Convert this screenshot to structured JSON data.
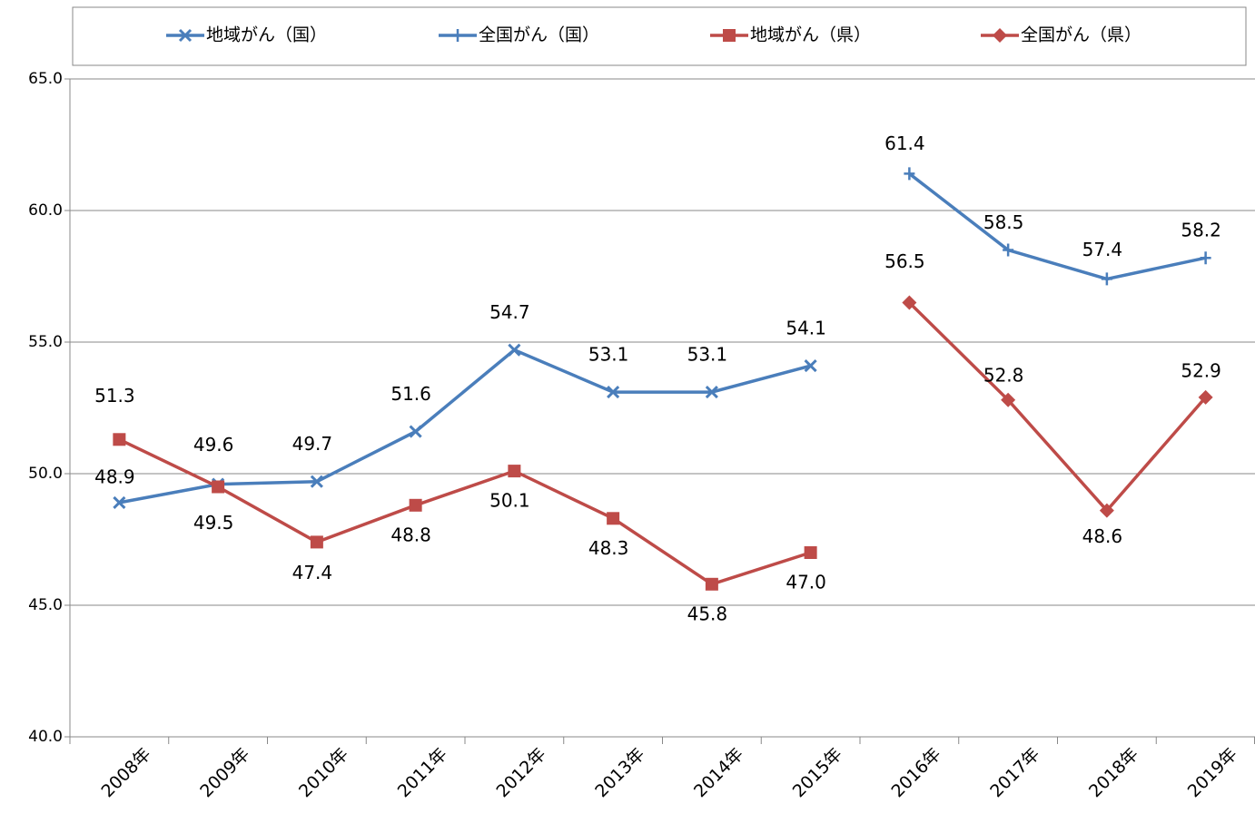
{
  "chart_data": {
    "type": "line",
    "categories": [
      "2008年",
      "2009年",
      "2010年",
      "2011年",
      "2012年",
      "2013年",
      "2014年",
      "2015年",
      "2016年",
      "2017年",
      "2018年",
      "2019年"
    ],
    "series": [
      {
        "name": "地域がん（国）",
        "color": "#4a7ebb",
        "marker": "x",
        "values": [
          48.9,
          49.6,
          49.7,
          51.6,
          54.7,
          53.1,
          53.1,
          54.1,
          null,
          null,
          null,
          null
        ],
        "value_labels": [
          "48.9",
          "49.6",
          "49.7",
          "51.6",
          "54.7",
          "53.1",
          "53.1",
          "54.1",
          null,
          null,
          null,
          null
        ]
      },
      {
        "name": "全国がん（国）",
        "color": "#4a7ebb",
        "marker": "plus",
        "values": [
          null,
          null,
          null,
          null,
          null,
          null,
          null,
          null,
          61.4,
          58.5,
          57.4,
          58.2
        ],
        "value_labels": [
          null,
          null,
          null,
          null,
          null,
          null,
          null,
          null,
          "61.4",
          "58.5",
          "57.4",
          "58.2"
        ]
      },
      {
        "name": "地域がん（県）",
        "color": "#be4b48",
        "marker": "square",
        "values": [
          51.3,
          49.5,
          47.4,
          48.8,
          50.1,
          48.3,
          45.8,
          47.0,
          null,
          null,
          null,
          null
        ],
        "value_labels": [
          "51.3",
          "49.5",
          "47.4",
          "48.8",
          "50.1",
          "48.3",
          "45.8",
          "47.0",
          null,
          null,
          null,
          null
        ]
      },
      {
        "name": "全国がん（県）",
        "color": "#be4b48",
        "marker": "diamond",
        "values": [
          null,
          null,
          null,
          null,
          null,
          null,
          null,
          null,
          56.5,
          52.8,
          48.6,
          52.9
        ],
        "value_labels": [
          null,
          null,
          null,
          null,
          null,
          null,
          null,
          null,
          "56.5",
          "52.8",
          "48.6",
          "52.9"
        ]
      }
    ],
    "ylim": [
      40,
      65
    ],
    "yticks": [
      {
        "value": 40,
        "label": "40.0"
      },
      {
        "value": 45,
        "label": "45.0"
      },
      {
        "value": 50,
        "label": "50.0"
      },
      {
        "value": 55,
        "label": "55.0"
      },
      {
        "value": 60,
        "label": "60.0"
      },
      {
        "value": 65,
        "label": "65.0"
      }
    ],
    "grid": true,
    "legend": "top"
  }
}
